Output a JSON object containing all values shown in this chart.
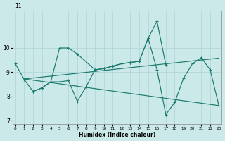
{
  "xlabel": "Humidex (Indice chaleur)",
  "xlim": [
    -0.3,
    23.3
  ],
  "ylim": [
    6.85,
    11.55
  ],
  "yticks": [
    7,
    8,
    9,
    10
  ],
  "xticks": [
    0,
    1,
    2,
    3,
    4,
    5,
    6,
    7,
    8,
    9,
    10,
    11,
    12,
    13,
    14,
    15,
    16,
    17,
    18,
    19,
    20,
    21,
    22,
    23
  ],
  "bg_color": "#cce9e9",
  "grid_color": "#add4d4",
  "line_color": "#1a7a6e",
  "curve1_x": [
    0,
    1,
    2,
    3,
    4,
    5,
    6,
    7,
    9,
    10,
    11,
    12,
    13,
    14,
    15,
    16,
    17
  ],
  "curve1_y": [
    9.35,
    8.7,
    8.2,
    8.35,
    8.6,
    10.0,
    10.0,
    9.75,
    9.1,
    9.15,
    9.25,
    9.35,
    9.4,
    9.45,
    10.4,
    11.1,
    9.3
  ],
  "curve2_x": [
    2,
    3,
    4,
    5,
    6,
    7,
    8,
    9,
    10,
    11,
    12,
    13,
    14,
    15,
    16,
    17,
    18,
    19,
    20,
    21,
    22,
    23
  ],
  "curve2_y": [
    8.2,
    8.35,
    8.6,
    8.6,
    8.65,
    7.8,
    8.4,
    9.1,
    9.15,
    9.25,
    9.35,
    9.4,
    9.45,
    10.4,
    9.1,
    7.25,
    7.75,
    8.75,
    9.35,
    9.6,
    9.1,
    7.6
  ],
  "line3_x": [
    1,
    23
  ],
  "line3_y": [
    8.72,
    9.58
  ],
  "line4_x": [
    1,
    23
  ],
  "line4_y": [
    8.72,
    7.62
  ]
}
